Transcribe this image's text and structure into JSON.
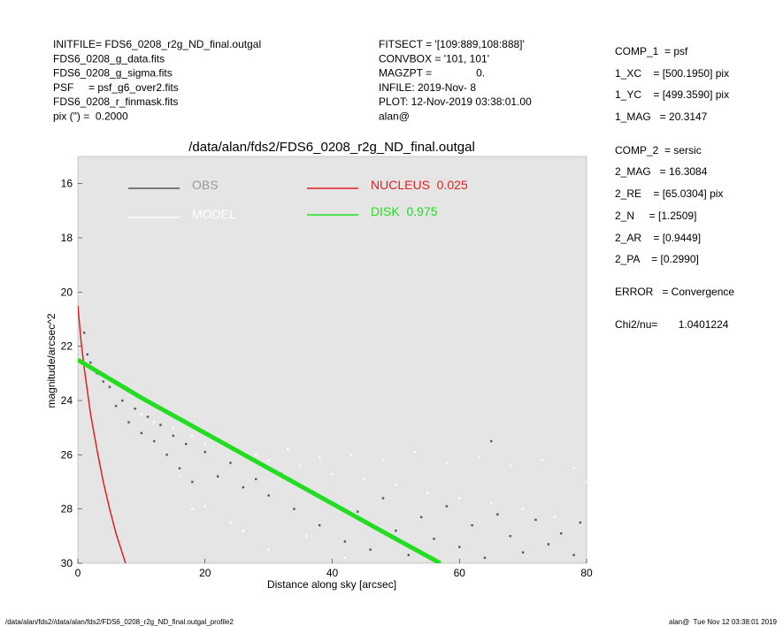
{
  "header_left": [
    "INITFILE= FDS6_0208_r2g_ND_final.outgal",
    "FDS6_0208_g_data.fits",
    "FDS6_0208_g_sigma.fits",
    "PSF     = psf_g6_over2.fits",
    "FDS6_0208_r_finmask.fits",
    "pix (\") =  0.2000"
  ],
  "header_middle": [
    "FITSECT = '[109:889,108:888]'",
    "CONVBOX = '101, 101'",
    "MAGZPT =               0.",
    "INFILE: 2019-Nov- 8",
    "PLOT: 12-Nov-2019 03:38:01.00",
    "alan@"
  ],
  "header_right": [
    "COMP_1  = psf",
    "1_XC    = [500.1950] pix",
    "1_YC    = [499.3590] pix",
    "1_MAG   = 20.3147",
    "COMP_2  = sersic",
    "2_MAG   = 16.3084",
    "2_RE    = [65.0304] pix",
    "2_N     = [1.2509]",
    "2_AR    = [0.9449]",
    "2_PA    = [0.2990]",
    "ERROR   = Convergence",
    "Chi2/nu=       1.0401224"
  ],
  "footer_left": "/data/alan/fds2//data/alan/fds2/FDS6_0208_r2g_ND_final.outgal_profile2",
  "footer_right": "alan@  Tue Nov 12 03:38:01 2019",
  "chart_data": {
    "type": "scatter",
    "title": "/data/alan/fds2/FDS6_0208_r2g_ND_final.outgal",
    "x_label": "Distance along sky [arcsec]",
    "y_label": "magnitude/arcsec^2",
    "xlim": [
      0,
      80
    ],
    "xticks": [
      0,
      20,
      40,
      60,
      80
    ],
    "ylim": [
      30,
      15
    ],
    "yticks": [
      16,
      18,
      20,
      22,
      24,
      26,
      28,
      30
    ],
    "background": "#e5e5e5",
    "series": [
      {
        "name": "OBS",
        "color": "#555555",
        "mode": "points",
        "x": [
          1,
          1.5,
          2,
          3,
          4,
          5,
          6,
          7,
          8,
          9,
          10,
          11,
          12,
          13,
          14,
          15,
          16,
          17,
          18,
          20,
          22,
          24,
          26,
          28,
          30,
          32,
          34,
          36,
          38,
          40,
          42,
          44,
          46,
          48,
          50,
          52,
          54,
          56,
          58,
          60,
          62,
          64,
          66,
          68,
          70,
          72,
          74,
          76,
          78,
          79,
          65
        ],
        "values": [
          21.5,
          22.3,
          22.6,
          23.0,
          23.3,
          23.5,
          24.2,
          24.0,
          24.8,
          24.3,
          25.2,
          24.6,
          25.5,
          24.9,
          26.0,
          25.3,
          26.5,
          25.6,
          27.0,
          25.9,
          26.8,
          26.3,
          27.2,
          26.9,
          27.5,
          26.7,
          28.0,
          27.3,
          28.6,
          27.8,
          29.2,
          28.1,
          29.5,
          27.6,
          28.8,
          29.7,
          28.3,
          29.1,
          27.9,
          29.4,
          28.6,
          29.8,
          28.2,
          29.0,
          29.6,
          28.4,
          29.3,
          28.9,
          29.7,
          28.5,
          25.5
        ]
      },
      {
        "name": "MODEL",
        "color": "#ffffff",
        "mode": "points",
        "x": [
          10,
          12,
          15,
          18,
          20,
          22,
          25,
          28,
          30,
          33,
          35,
          38,
          40,
          43,
          45,
          48,
          50,
          53,
          55,
          58,
          60,
          63,
          65,
          68,
          70,
          73,
          75,
          78,
          80,
          24,
          30,
          36,
          42,
          20,
          26,
          16,
          18
        ],
        "values": [
          24.5,
          24.8,
          25.0,
          25.3,
          25.6,
          25.5,
          25.9,
          26.0,
          26.2,
          25.8,
          26.4,
          26.1,
          26.7,
          26.0,
          26.9,
          26.2,
          27.1,
          25.9,
          27.4,
          26.3,
          27.6,
          26.1,
          27.8,
          26.4,
          28.0,
          26.2,
          28.3,
          26.5,
          27.0,
          28.5,
          29.5,
          29.0,
          29.8,
          27.9,
          28.8,
          26.8,
          28.0
        ]
      },
      {
        "name": "NUCLEUS  0.025",
        "color": "#e02020",
        "mode": "line",
        "x": [
          0,
          0.5,
          1,
          2,
          3,
          4,
          5,
          6,
          7.5
        ],
        "values": [
          20.5,
          21.8,
          22.8,
          24.5,
          25.8,
          27,
          28,
          28.9,
          30
        ]
      },
      {
        "name": "DISK  0.975",
        "color": "#22dd22",
        "mode": "line",
        "x": [
          0,
          5,
          10,
          20,
          30,
          40,
          50,
          57
        ],
        "values": [
          22.5,
          23.2,
          23.9,
          25.2,
          26.5,
          27.8,
          29.1,
          30
        ]
      }
    ]
  }
}
